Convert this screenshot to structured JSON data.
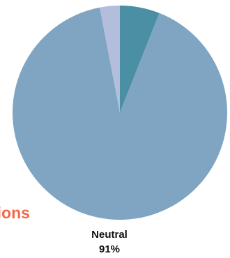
{
  "chart_data": {
    "type": "pie",
    "start_angle_deg": 0,
    "direction": "clockwise",
    "slices": [
      {
        "label": "",
        "value": 6,
        "value_label": "",
        "color": "#4a8fa3"
      },
      {
        "label": "Neutral",
        "value": 91,
        "value_label": "91%",
        "color": "#7fa5c2"
      },
      {
        "label": "",
        "value": 3,
        "value_label": "",
        "color": "#b3bedc"
      }
    ],
    "cut_label": {
      "text": "tions",
      "color": "#f26a4b"
    }
  }
}
